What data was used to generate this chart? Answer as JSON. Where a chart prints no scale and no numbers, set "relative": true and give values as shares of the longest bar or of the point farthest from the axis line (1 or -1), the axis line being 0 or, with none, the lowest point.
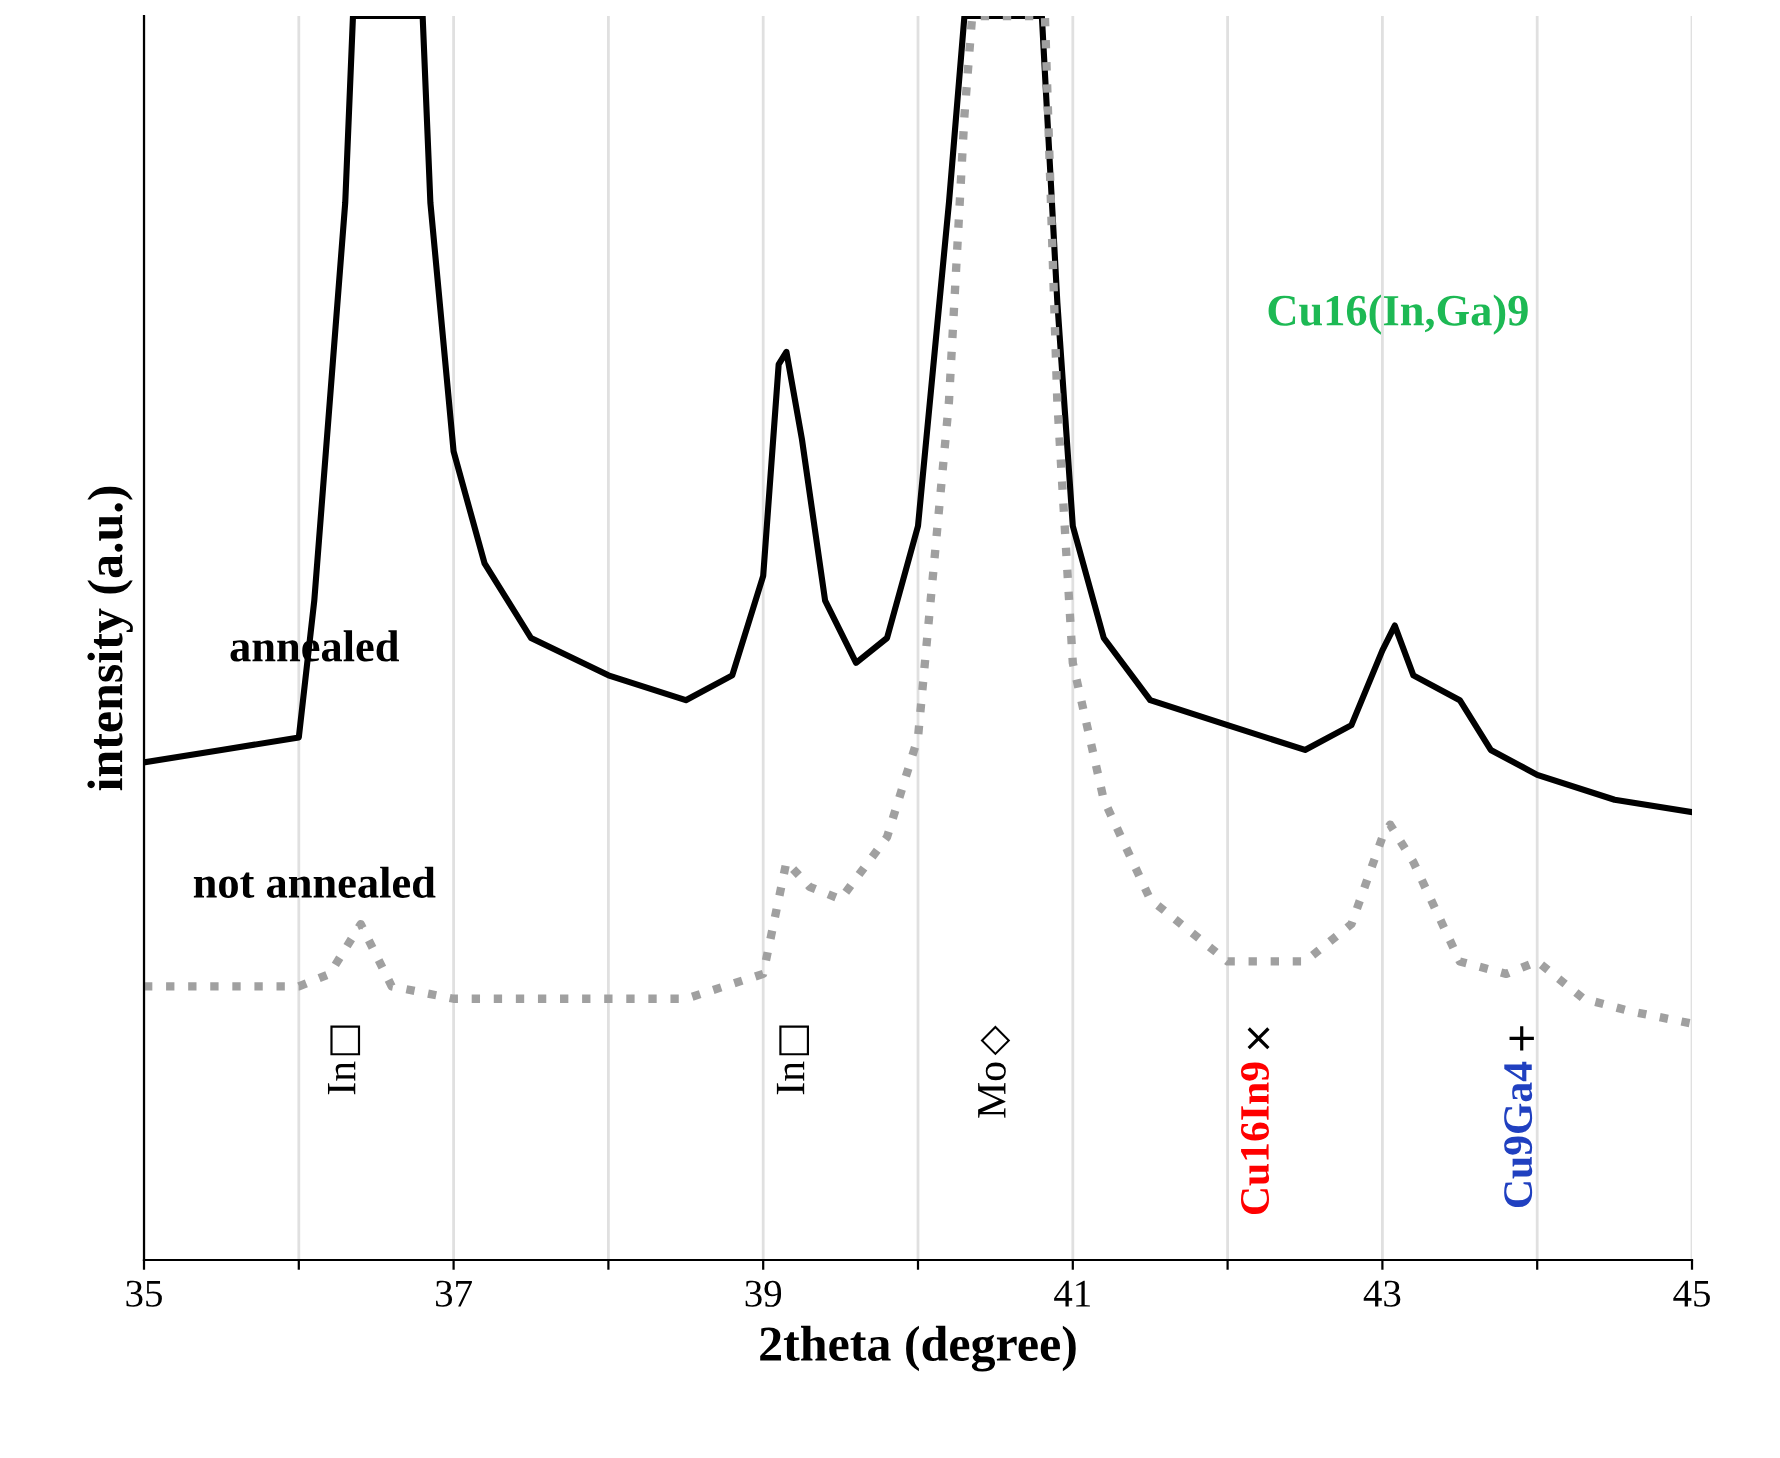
{
  "chart_data": {
    "type": "line",
    "relative": true,
    "xlabel": "2theta (degree)",
    "ylabel": "intensity (a.u.)",
    "xlim": [
      35,
      45
    ],
    "xticks": [
      35,
      {
        "value": 36,
        "label": null
      },
      37,
      {
        "value": 38,
        "label": null
      },
      39,
      {
        "value": 40,
        "label": null
      },
      41,
      {
        "value": 42,
        "label": null
      },
      43,
      {
        "value": 44,
        "label": null
      },
      45
    ],
    "grid": "x",
    "legend": false,
    "series": [
      {
        "color": "#000000",
        "line_style": "solid",
        "x": [
          35.0,
          35.5,
          36.0,
          36.1,
          36.2,
          36.3,
          36.35,
          36.8,
          36.85,
          37.0,
          37.2,
          37.5,
          38.0,
          38.5,
          38.8,
          39.0,
          39.1,
          39.15,
          39.25,
          39.4,
          39.6,
          39.8,
          40.0,
          40.2,
          40.3,
          40.8,
          40.9,
          41.0,
          41.2,
          41.5,
          42.0,
          42.5,
          42.8,
          43.0,
          43.08,
          43.2,
          43.5,
          43.7,
          44.0,
          44.5,
          45.0
        ],
        "values": [
          0.4,
          0.41,
          0.42,
          0.53,
          0.69,
          0.85,
          1.0,
          1.0,
          0.85,
          0.65,
          0.56,
          0.5,
          0.47,
          0.45,
          0.47,
          0.55,
          0.72,
          0.73,
          0.66,
          0.53,
          0.48,
          0.5,
          0.59,
          0.85,
          1.0,
          1.0,
          0.77,
          0.59,
          0.5,
          0.45,
          0.43,
          0.41,
          0.43,
          0.49,
          0.51,
          0.47,
          0.45,
          0.41,
          0.39,
          0.37,
          0.36
        ]
      },
      {
        "color": "#a0a0a0",
        "line_style": "dotted",
        "x": [
          35.0,
          35.5,
          36.0,
          36.2,
          36.4,
          36.6,
          37.0,
          38.0,
          38.5,
          39.0,
          39.15,
          39.3,
          39.5,
          39.8,
          40.0,
          40.2,
          40.3,
          40.35,
          40.82,
          40.9,
          41.0,
          41.2,
          41.5,
          42.0,
          42.5,
          42.8,
          43.0,
          43.05,
          43.2,
          43.5,
          43.8,
          44.0,
          44.3,
          44.6,
          45.0
        ],
        "values": [
          0.22,
          0.22,
          0.22,
          0.23,
          0.27,
          0.22,
          0.21,
          0.21,
          0.21,
          0.23,
          0.32,
          0.3,
          0.29,
          0.34,
          0.42,
          0.69,
          0.92,
          1.0,
          1.0,
          0.69,
          0.48,
          0.37,
          0.29,
          0.24,
          0.24,
          0.27,
          0.34,
          0.35,
          0.32,
          0.24,
          0.23,
          0.24,
          0.21,
          0.2,
          0.19
        ]
      }
    ],
    "annotations": [
      "annealed",
      "not annealed",
      "Cu16(In,Ga)9",
      "□",
      "In",
      "□",
      "In",
      "◇",
      "Mo",
      "×",
      "Cu16In9",
      "+",
      "Cu9Ga4"
    ]
  }
}
